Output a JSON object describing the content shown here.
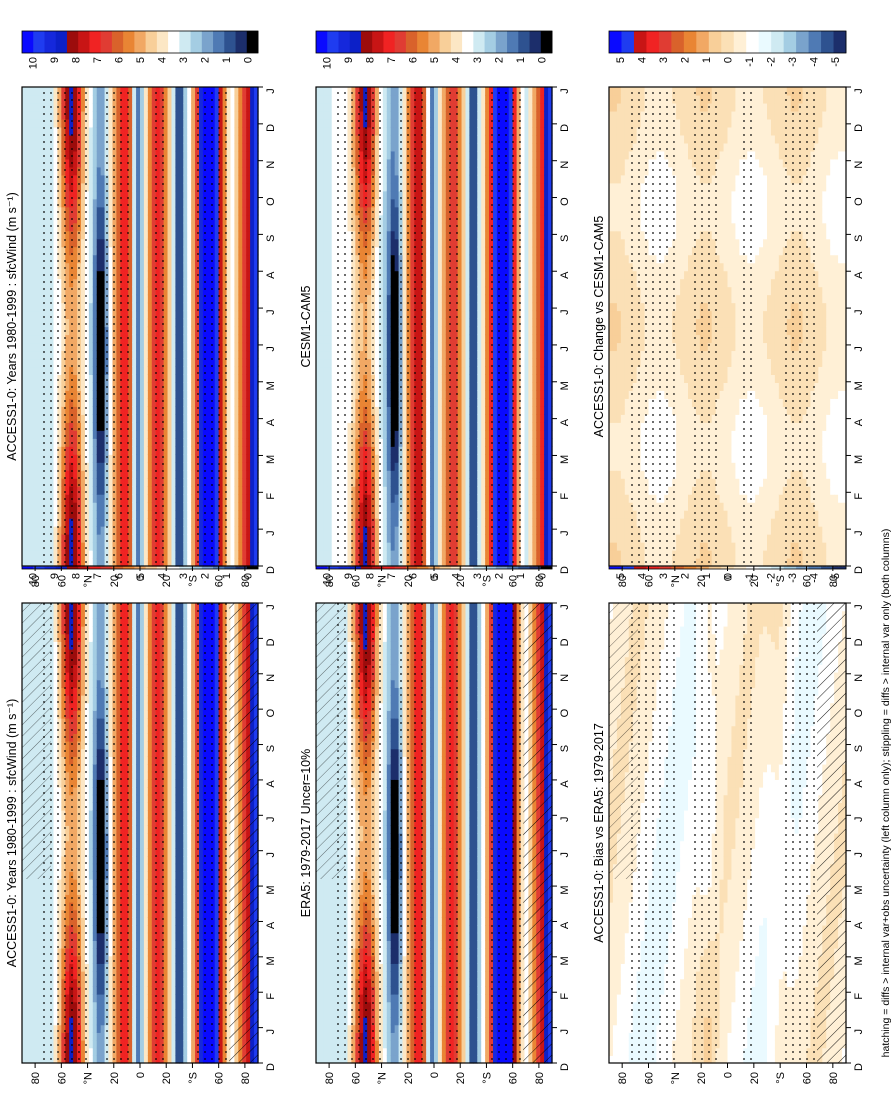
{
  "figure": {
    "footnote": "hatching = diffs > internal var+obs uncertainty (left column only); stippling = diffs > internal var only (both columns)"
  },
  "colors": {
    "seq": [
      "#000000",
      "#1c2e6b",
      "#2e5290",
      "#4f7ab4",
      "#7aa3cc",
      "#a4cde3",
      "#cfeaf2",
      "#ffffff",
      "#fce7c5",
      "#f8cf99",
      "#f1a864",
      "#e98534",
      "#d9622b",
      "#e03c33",
      "#f02323",
      "#c81515",
      "#9c0c0c",
      "#0c20c8",
      "#1528dc",
      "#1f3cf0",
      "#0a0aff"
    ],
    "div": [
      "#1c2e6b",
      "#2e5290",
      "#4f7ab4",
      "#7aa3cc",
      "#a4cde3",
      "#cfeaf2",
      "#eafaff",
      "#ffffff",
      "#fff0d6",
      "#fbe0b6",
      "#f8cf99",
      "#f1a864",
      "#e98534",
      "#d9622b",
      "#e03c33",
      "#f02323",
      "#c81515",
      "#1f3cf0",
      "#0a0aff"
    ]
  },
  "colorbars": {
    "abs_ticks": [
      "10",
      "9",
      "8",
      "7",
      "6",
      "5",
      "4",
      "3",
      "2",
      "1",
      "0"
    ],
    "diff_ticks": [
      "5",
      "4",
      "3",
      "2",
      "1",
      "0",
      "-1",
      "-2",
      "-3",
      "-4",
      "-5"
    ]
  },
  "axes": {
    "month_ticks": [
      "D",
      "J",
      "F",
      "M",
      "A",
      "M",
      "J",
      "J",
      "A",
      "S",
      "O",
      "N",
      "D",
      "J"
    ],
    "lat_ticks": [
      "80",
      "60",
      "°N",
      "20",
      "0",
      "20",
      "°S",
      "60",
      "80"
    ]
  },
  "chart_data": [
    {
      "id": "p1",
      "type": "heatmap",
      "title": "ACCESS1-0: Years 1980-1999 : sfcWind (m s⁻¹)",
      "units": "m s⁻¹",
      "x_axis": "month",
      "y_axis": "latitude",
      "xlim": [
        "D",
        "J"
      ],
      "ylim": [
        90,
        -90
      ],
      "colorbar_range": [
        0,
        10
      ],
      "hatching": true,
      "stippling": true
    },
    {
      "id": "p2",
      "type": "heatmap",
      "title": "ERA5: 1979-2017 Uncer=10%",
      "units": "m s⁻¹",
      "x_axis": "month",
      "y_axis": "latitude",
      "xlim": [
        "D",
        "J"
      ],
      "ylim": [
        90,
        -90
      ],
      "colorbar_range": [
        0,
        10
      ],
      "hatching": true,
      "stippling": true
    },
    {
      "id": "p3",
      "type": "heatmap",
      "title": "ACCESS1-0: Bias vs ERA5: 1979-2017",
      "units": "m s⁻¹",
      "x_axis": "month",
      "y_axis": "latitude",
      "xlim": [
        "D",
        "J"
      ],
      "ylim": [
        90,
        -90
      ],
      "colorbar_range": [
        -5,
        5
      ],
      "hatching": true,
      "stippling": true
    },
    {
      "id": "p4",
      "type": "heatmap",
      "title": "ACCESS1-0: Years 1980-1999 : sfcWind (m s⁻¹)",
      "units": "m s⁻¹",
      "x_axis": "month",
      "y_axis": "latitude",
      "xlim": [
        "D",
        "J"
      ],
      "ylim": [
        90,
        -90
      ],
      "colorbar_range": [
        0,
        10
      ],
      "hatching": false,
      "stippling": true
    },
    {
      "id": "p5",
      "type": "heatmap",
      "title": "CESM1-CAM5",
      "units": "m s⁻¹",
      "x_axis": "month",
      "y_axis": "latitude",
      "xlim": [
        "D",
        "J"
      ],
      "ylim": [
        90,
        -90
      ],
      "colorbar_range": [
        0,
        10
      ],
      "hatching": false,
      "stippling": true
    },
    {
      "id": "p6",
      "type": "heatmap",
      "title": "ACCESS1-0: Change vs CESM1-CAM5",
      "units": "m s⁻¹",
      "x_axis": "month",
      "y_axis": "latitude",
      "xlim": [
        "D",
        "J"
      ],
      "ylim": [
        90,
        -90
      ],
      "colorbar_range": [
        -5,
        5
      ],
      "hatching": false,
      "stippling": true
    }
  ]
}
